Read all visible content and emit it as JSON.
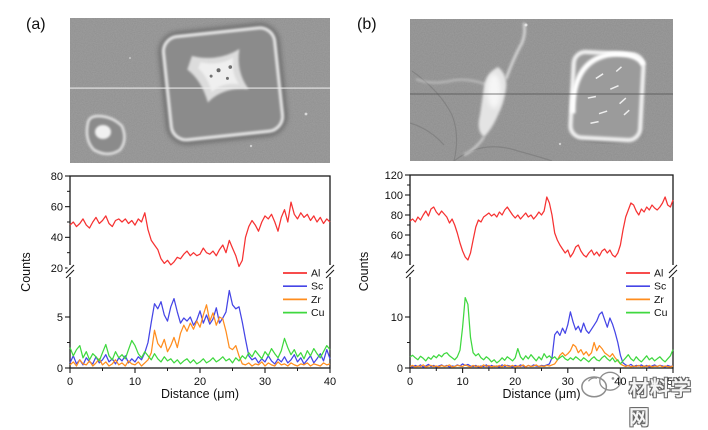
{
  "figure": {
    "panels": [
      {
        "id": "a",
        "label": "(a)"
      },
      {
        "id": "b",
        "label": "(b)"
      }
    ],
    "watermark": {
      "text": "材料学网"
    }
  },
  "chart_data": [
    {
      "id": "a",
      "type": "line",
      "title": "",
      "xlabel": "Distance (μm)",
      "ylabel": "Counts",
      "xlim": [
        0,
        40
      ],
      "x_ticks": [
        0,
        10,
        20,
        30,
        40
      ],
      "x_start": 0,
      "x_step": 0.5,
      "y_axis_break": {
        "lower_range": [
          0,
          5
        ],
        "upper_range": [
          20,
          80
        ]
      },
      "y_ticks_lower": [
        0,
        5
      ],
      "y_ticks_upper": [
        20,
        40,
        60,
        80
      ],
      "legend_position": "inside-right",
      "series": [
        {
          "name": "Al",
          "color": "#f63232",
          "values": [
            48,
            50,
            47,
            49,
            52,
            48,
            46,
            50,
            53,
            49,
            51,
            54,
            49,
            47,
            51,
            52,
            50,
            52,
            49,
            51,
            48,
            52,
            50,
            56,
            45,
            38,
            35,
            32,
            26,
            23,
            25,
            22,
            24,
            27,
            26,
            29,
            31,
            28,
            30,
            28,
            29,
            33,
            30,
            29,
            31,
            28,
            32,
            35,
            30,
            38,
            33,
            28,
            21,
            25,
            40,
            47,
            51,
            48,
            44,
            50,
            54,
            52,
            55,
            50,
            44,
            53,
            58,
            50,
            63,
            55,
            52,
            56,
            53,
            55,
            51,
            54,
            50,
            53,
            49,
            52,
            50
          ]
        },
        {
          "name": "Sc",
          "color": "#4545e6",
          "values": [
            0.5,
            1.2,
            0.4,
            0.8,
            0.3,
            1.0,
            0.6,
            0.4,
            1.1,
            0.5,
            0.8,
            1.3,
            0.6,
            0.9,
            0.4,
            1.0,
            0.7,
            1.2,
            0.5,
            0.9,
            0.6,
            1.1,
            0.8,
            1.5,
            2.5,
            4.5,
            6.3,
            5.8,
            6.5,
            5.2,
            4.6,
            6.0,
            6.8,
            5.5,
            4.4,
            4.9,
            4.6,
            5.0,
            4.2,
            4.7,
            5.6,
            4.4,
            5.2,
            4.3,
            4.8,
            5.9,
            4.4,
            4.9,
            5.5,
            7.6,
            6.2,
            5.8,
            6.0,
            4.5,
            2.8,
            1.2,
            0.8,
            1.0,
            0.5,
            0.9,
            0.6,
            1.2,
            0.7,
            0.4,
            0.9,
            0.6,
            1.1,
            0.5,
            0.8,
            1.3,
            0.6,
            1.0,
            0.4,
            0.8,
            1.2,
            0.5,
            0.9,
            1.4,
            0.7,
            1.8,
            0.9
          ]
        },
        {
          "name": "Zr",
          "color": "#ff8d1e",
          "values": [
            0.3,
            0.6,
            0.2,
            0.8,
            0.4,
            0.3,
            0.7,
            0.2,
            0.5,
            0.9,
            0.3,
            0.6,
            0.2,
            0.4,
            0.8,
            0.3,
            0.5,
            0.2,
            0.7,
            0.4,
            0.3,
            0.6,
            0.2,
            0.5,
            0.8,
            1.5,
            3.7,
            2.4,
            2.0,
            2.8,
            1.6,
            2.2,
            3.0,
            2.0,
            3.4,
            4.2,
            3.6,
            4.4,
            3.8,
            4.6,
            4.0,
            5.2,
            6.2,
            4.6,
            5.4,
            4.2,
            5.0,
            4.8,
            3.6,
            2.0,
            1.8,
            2.2,
            1.2,
            0.4,
            0.3,
            0.5,
            0.2,
            0.4,
            0.3,
            0.6,
            0.2,
            0.5,
            0.3,
            0.2,
            0.6,
            0.3,
            0.4,
            0.2,
            0.5,
            0.3,
            0.2,
            0.4,
            0.3,
            0.5,
            0.2,
            0.4,
            0.3,
            0.2,
            0.5,
            0.3,
            0.4
          ]
        },
        {
          "name": "Cu",
          "color": "#3fd83f",
          "values": [
            2.0,
            1.2,
            1.8,
            2.2,
            1.0,
            1.6,
            0.8,
            1.4,
            1.1,
            0.7,
            1.5,
            2.3,
            1.2,
            0.8,
            1.6,
            1.0,
            1.3,
            0.9,
            1.8,
            2.7,
            2.2,
            1.4,
            1.0,
            1.6,
            1.2,
            0.8,
            1.4,
            0.9,
            0.6,
            1.1,
            0.7,
            0.9,
            0.5,
            0.8,
            0.4,
            0.7,
            0.9,
            0.5,
            0.8,
            0.4,
            0.6,
            0.9,
            0.5,
            0.7,
            1.0,
            0.6,
            0.8,
            1.1,
            0.7,
            0.9,
            0.5,
            1.0,
            0.7,
            1.2,
            0.9,
            1.5,
            1.1,
            1.7,
            1.3,
            0.9,
            1.6,
            1.2,
            1.9,
            1.4,
            1.0,
            1.7,
            2.9,
            2.0,
            1.3,
            1.8,
            1.1,
            1.5,
            0.9,
            1.7,
            1.2,
            1.9,
            1.4,
            1.0,
            1.6,
            2.2,
            1.8
          ]
        }
      ]
    },
    {
      "id": "b",
      "type": "line",
      "title": "",
      "xlabel": "Distance (μm)",
      "ylabel": "Counts",
      "xlim": [
        0,
        50
      ],
      "x_ticks": [
        0,
        10,
        20,
        30,
        40,
        50
      ],
      "x_start": 0,
      "x_step": 0.5,
      "y_axis_break": {
        "lower_range": [
          0,
          10
        ],
        "upper_range": [
          40,
          120
        ]
      },
      "y_ticks_lower": [
        0,
        10
      ],
      "y_ticks_upper": [
        40,
        60,
        80,
        100,
        120
      ],
      "legend_position": "inside-right",
      "series": [
        {
          "name": "Al",
          "color": "#f63232",
          "values": [
            74,
            76,
            73,
            78,
            75,
            80,
            84,
            79,
            86,
            88,
            83,
            80,
            84,
            81,
            78,
            72,
            76,
            70,
            62,
            52,
            44,
            38,
            35,
            42,
            55,
            68,
            75,
            73,
            78,
            80,
            82,
            79,
            81,
            78,
            83,
            80,
            85,
            88,
            84,
            80,
            77,
            80,
            76,
            79,
            82,
            78,
            80,
            76,
            79,
            83,
            80,
            84,
            98,
            92,
            80,
            62,
            55,
            50,
            46,
            42,
            45,
            38,
            42,
            48,
            50,
            44,
            40,
            38,
            42,
            45,
            40,
            43,
            39,
            44,
            46,
            42,
            45,
            40,
            38,
            42,
            50,
            65,
            78,
            85,
            92,
            90,
            84,
            80,
            86,
            83,
            88,
            85,
            90,
            87,
            85,
            88,
            92,
            98,
            90,
            88,
            95
          ]
        },
        {
          "name": "Sc",
          "color": "#4545e6",
          "values": [
            0.4,
            0.2,
            0.5,
            0.3,
            0.6,
            0.2,
            0.4,
            0.7,
            0.3,
            0.5,
            0.2,
            0.4,
            0.6,
            0.3,
            0.5,
            0.2,
            0.4,
            0.3,
            0.6,
            0.4,
            0.8,
            0.5,
            0.7,
            0.4,
            0.3,
            0.5,
            0.2,
            0.4,
            0.3,
            0.6,
            0.2,
            0.5,
            0.3,
            0.4,
            0.2,
            0.6,
            0.3,
            0.5,
            0.4,
            0.2,
            0.5,
            0.3,
            0.6,
            0.4,
            0.2,
            0.5,
            0.3,
            0.6,
            0.4,
            0.3,
            0.5,
            0.4,
            0.6,
            0.8,
            2.0,
            6.5,
            7.2,
            6.4,
            7.8,
            6.8,
            8.5,
            11.0,
            9.0,
            7.5,
            8.2,
            7.0,
            8.8,
            7.4,
            6.8,
            7.6,
            8.4,
            9.2,
            10.5,
            11.0,
            9.5,
            8.0,
            9.8,
            8.6,
            7.0,
            5.0,
            2.5,
            1.0,
            0.6,
            0.4,
            0.7,
            0.3,
            0.5,
            0.4,
            0.6,
            0.3,
            0.5,
            0.2,
            0.4,
            0.6,
            0.3,
            0.5,
            0.4,
            0.2,
            0.5,
            0.3,
            0.4
          ]
        },
        {
          "name": "Zr",
          "color": "#ff8d1e",
          "values": [
            0.3,
            0.5,
            0.2,
            0.4,
            0.3,
            0.6,
            0.2,
            0.4,
            0.5,
            0.3,
            0.4,
            0.2,
            0.5,
            0.3,
            0.4,
            0.6,
            0.2,
            0.3,
            0.5,
            0.4,
            0.3,
            0.6,
            0.4,
            0.2,
            0.5,
            0.3,
            0.4,
            0.2,
            0.6,
            0.3,
            0.5,
            0.2,
            0.4,
            0.3,
            0.5,
            0.2,
            0.6,
            0.4,
            0.3,
            0.5,
            0.2,
            0.4,
            0.3,
            0.6,
            0.2,
            0.5,
            0.3,
            0.4,
            0.6,
            0.3,
            0.4,
            0.3,
            0.5,
            0.4,
            0.6,
            0.8,
            1.5,
            2.5,
            3.0,
            2.4,
            2.8,
            3.4,
            4.6,
            4.2,
            3.0,
            3.6,
            2.6,
            3.2,
            2.4,
            3.0,
            5.0,
            3.4,
            4.4,
            3.8,
            3.0,
            2.6,
            2.2,
            2.8,
            2.0,
            1.4,
            0.8,
            0.5,
            0.3,
            0.5,
            0.2,
            0.4,
            0.3,
            0.5,
            0.2,
            0.4,
            0.3,
            0.5,
            0.2,
            0.4,
            0.3,
            0.5,
            0.2,
            0.4,
            0.3,
            0.2,
            0.4
          ]
        },
        {
          "name": "Cu",
          "color": "#3fd83f",
          "values": [
            2.2,
            2.5,
            2.0,
            1.6,
            2.3,
            1.9,
            1.4,
            2.1,
            1.7,
            2.4,
            2.0,
            2.6,
            2.2,
            2.8,
            3.0,
            2.4,
            2.0,
            1.6,
            2.2,
            3.5,
            8.0,
            13.8,
            12.5,
            6.0,
            3.0,
            2.4,
            2.8,
            2.0,
            1.6,
            2.2,
            1.8,
            1.2,
            1.6,
            1.0,
            1.4,
            2.0,
            1.5,
            2.2,
            1.8,
            1.4,
            2.0,
            3.8,
            2.2,
            1.6,
            2.4,
            1.8,
            2.6,
            2.0,
            1.4,
            2.2,
            1.6,
            2.8,
            2.0,
            2.4,
            1.8,
            2.2,
            1.6,
            2.0,
            2.4,
            1.8,
            1.5,
            2.0,
            1.6,
            2.2,
            1.8,
            1.4,
            2.0,
            1.6,
            1.2,
            1.8,
            2.2,
            1.6,
            1.4,
            2.0,
            2.4,
            1.8,
            1.4,
            2.0,
            1.2,
            1.6,
            0.8,
            1.4,
            2.0,
            2.6,
            1.8,
            1.4,
            2.2,
            1.6,
            1.2,
            1.8,
            2.4,
            1.6,
            2.0,
            1.4,
            1.8,
            2.2,
            1.6,
            1.2,
            1.8,
            2.4,
            3.6
          ]
        }
      ]
    }
  ]
}
